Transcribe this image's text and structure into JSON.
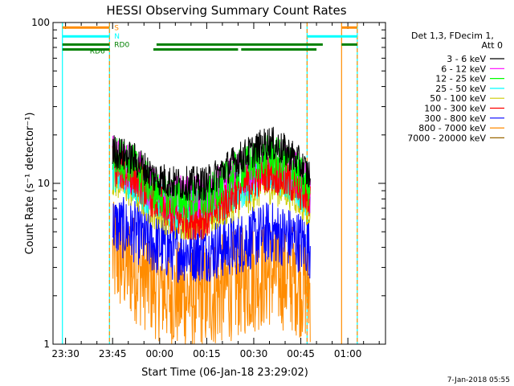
{
  "chart_data": {
    "type": "line",
    "title": "HESSI Observing Summary Count Rates",
    "xlabel": "Start Time (06-Jan-18 23:29:02)",
    "ylabel": "Count Rate (s⁻¹ detector⁻¹)",
    "y_scale": "log",
    "ylim": [
      1,
      100
    ],
    "xlim": [
      "23:26",
      "01:12"
    ],
    "x_ticks": [
      "23:30",
      "23:45",
      "00:00",
      "00:15",
      "00:30",
      "00:45",
      "01:00"
    ],
    "y_ticks": [
      "1",
      "10",
      "100"
    ],
    "legend_title": [
      "Det 1,3, FDecim 1,",
      "Att 0"
    ],
    "legend_position": "right",
    "series": [
      {
        "name": "3 - 6 keV",
        "color": "#000000",
        "points": [
          [
            "23:45",
            16
          ],
          [
            "23:52",
            14
          ],
          [
            "23:58",
            11
          ],
          [
            "00:05",
            10
          ],
          [
            "00:15",
            10
          ],
          [
            "00:25",
            14
          ],
          [
            "00:35",
            18
          ],
          [
            "00:42",
            15
          ],
          [
            "00:48",
            11
          ]
        ]
      },
      {
        "name": "6 - 12 keV",
        "color": "#ff00ff",
        "points": [
          [
            "23:45",
            14
          ],
          [
            "23:52",
            12
          ],
          [
            "23:58",
            9
          ],
          [
            "00:05",
            8
          ],
          [
            "00:15",
            8
          ],
          [
            "00:25",
            11
          ],
          [
            "00:35",
            14
          ],
          [
            "00:42",
            12
          ],
          [
            "00:48",
            9
          ]
        ]
      },
      {
        "name": "12 - 25 keV",
        "color": "#00ff00",
        "points": [
          [
            "23:45",
            15
          ],
          [
            "23:52",
            13
          ],
          [
            "23:58",
            9
          ],
          [
            "00:05",
            8
          ],
          [
            "00:15",
            8
          ],
          [
            "00:25",
            12
          ],
          [
            "00:35",
            15
          ],
          [
            "00:42",
            13
          ],
          [
            "00:48",
            9
          ]
        ]
      },
      {
        "name": "25 - 50 keV",
        "color": "#00ffff",
        "points": [
          [
            "23:45",
            12
          ],
          [
            "23:52",
            10
          ],
          [
            "23:58",
            8
          ],
          [
            "00:05",
            7
          ],
          [
            "00:15",
            7
          ],
          [
            "00:25",
            9
          ],
          [
            "00:35",
            12
          ],
          [
            "00:42",
            10
          ],
          [
            "00:48",
            8
          ]
        ]
      },
      {
        "name": "50 - 100 keV",
        "color": "#cccc00",
        "points": [
          [
            "23:45",
            11
          ],
          [
            "23:52",
            9
          ],
          [
            "23:58",
            7
          ],
          [
            "00:05",
            6
          ],
          [
            "00:15",
            6
          ],
          [
            "00:25",
            8
          ],
          [
            "00:35",
            10
          ],
          [
            "00:42",
            9
          ],
          [
            "00:48",
            7
          ]
        ]
      },
      {
        "name": "100 - 300 keV",
        "color": "#ff0000",
        "points": [
          [
            "23:45",
            13
          ],
          [
            "23:52",
            11
          ],
          [
            "23:58",
            8
          ],
          [
            "00:05",
            6
          ],
          [
            "00:15",
            6
          ],
          [
            "00:25",
            9
          ],
          [
            "00:35",
            12
          ],
          [
            "00:42",
            10
          ],
          [
            "00:48",
            8
          ]
        ]
      },
      {
        "name": "300 - 800 keV",
        "color": "#0000ff",
        "points": [
          [
            "23:45",
            5.5
          ],
          [
            "23:52",
            5
          ],
          [
            "23:58",
            4.2
          ],
          [
            "00:05",
            3.8
          ],
          [
            "00:15",
            3.8
          ],
          [
            "00:25",
            4.2
          ],
          [
            "00:35",
            5
          ],
          [
            "00:42",
            4.6
          ],
          [
            "00:48",
            4
          ]
        ]
      },
      {
        "name": "800 - 7000 keV",
        "color": "#ff8c00",
        "points": [
          [
            "23:45",
            3.5
          ],
          [
            "23:52",
            3
          ],
          [
            "23:58",
            2.4
          ],
          [
            "00:05",
            2
          ],
          [
            "00:15",
            2
          ],
          [
            "00:25",
            2.4
          ],
          [
            "00:35",
            2.8
          ],
          [
            "00:42",
            2.6
          ],
          [
            "00:48",
            2.2
          ]
        ]
      },
      {
        "name": "7000 - 20000 keV",
        "color": "#996600",
        "points": []
      }
    ],
    "flag_bars": [
      {
        "label": "S",
        "color": "#ff8c00",
        "level": 93,
        "segments": [
          [
            "23:29",
            "23:44"
          ],
          [
            "00:58",
            "01:03"
          ]
        ]
      },
      {
        "label": "N",
        "color": "#00ffff",
        "level": 82,
        "segments": [
          [
            "23:29",
            "23:44"
          ],
          [
            "00:47",
            "01:03"
          ]
        ]
      },
      {
        "label": "RD0",
        "color": "#008000",
        "level": 73,
        "segments": [
          [
            "23:29",
            "23:44"
          ],
          [
            "23:59",
            "00:52"
          ],
          [
            "00:58",
            "01:03"
          ]
        ]
      },
      {
        "label": "RD6",
        "color": "#008000",
        "level": 68,
        "segments": [
          [
            "23:29",
            "23:44"
          ],
          [
            "23:58",
            "00:25"
          ],
          [
            "00:26",
            "00:50"
          ]
        ]
      }
    ],
    "vertical_markers": [
      {
        "x": "23:29",
        "color": "#00ffff",
        "style": "solid"
      },
      {
        "x": "23:44",
        "color": "#00ffff",
        "style": "solid"
      },
      {
        "x": "23:44",
        "color": "#ff8c00",
        "style": "dashed"
      },
      {
        "x": "00:47",
        "color": "#00ffff",
        "style": "solid"
      },
      {
        "x": "00:47",
        "color": "#ff8c00",
        "style": "dashed"
      },
      {
        "x": "00:58",
        "color": "#ff8c00",
        "style": "solid"
      },
      {
        "x": "01:03",
        "color": "#00ffff",
        "style": "solid"
      },
      {
        "x": "01:03",
        "color": "#ff8c00",
        "style": "dashed"
      }
    ],
    "footer": "7-Jan-2018 05:55"
  }
}
